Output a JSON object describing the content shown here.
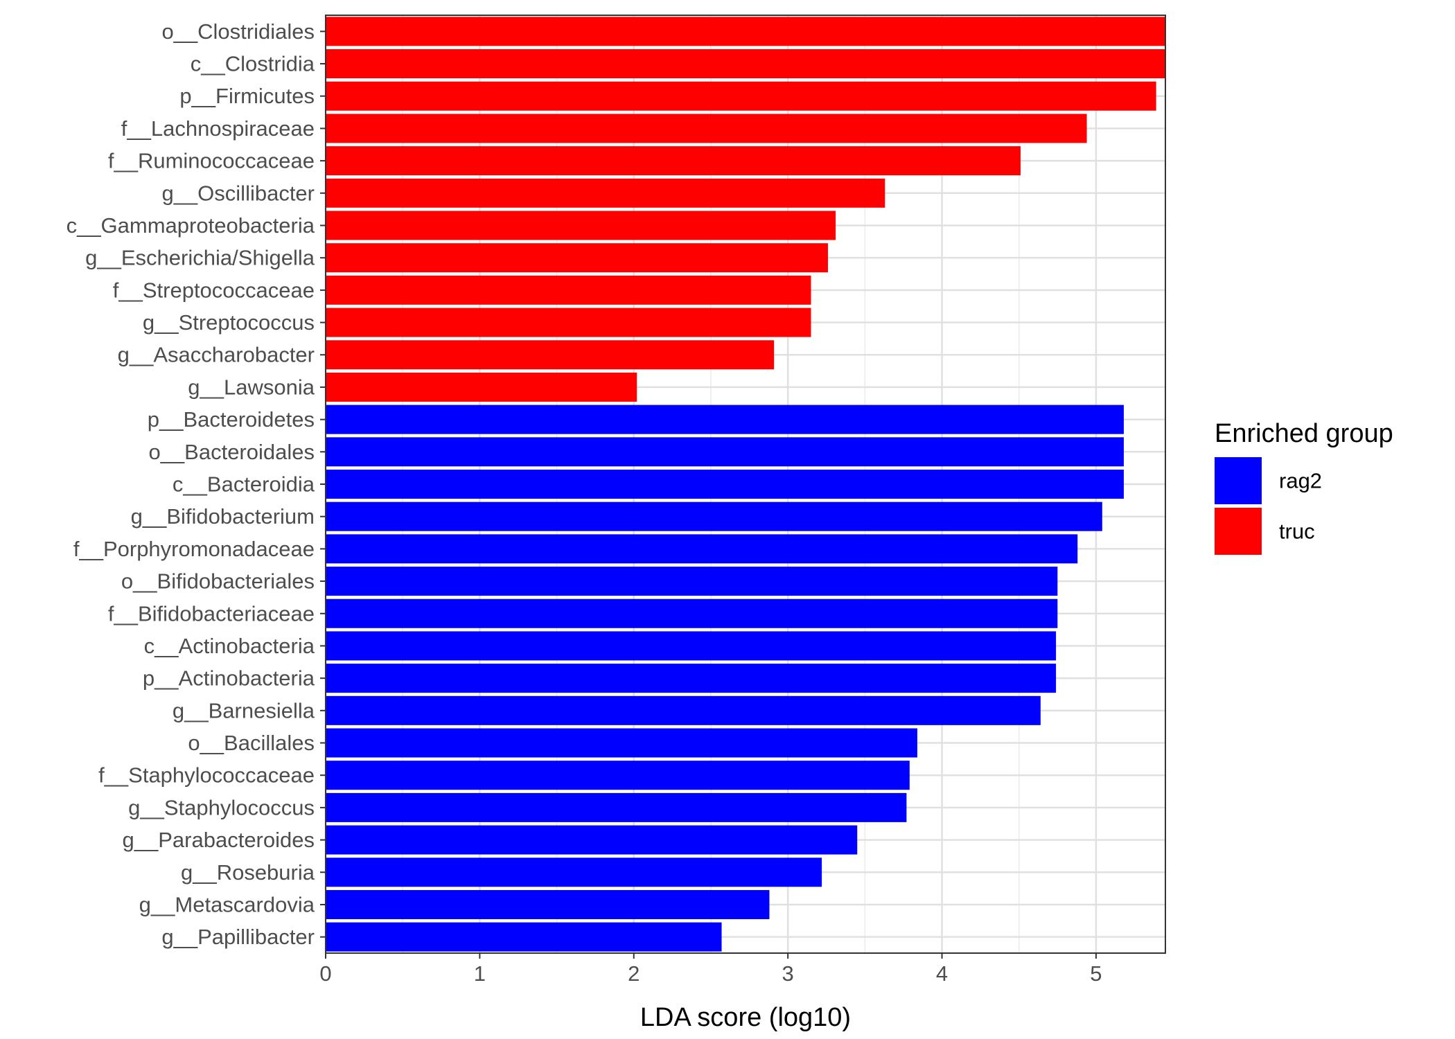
{
  "chart_data": {
    "type": "bar",
    "orientation": "horizontal",
    "title": "",
    "xlabel": "LDA score (log10)",
    "ylabel": "",
    "xlim": [
      0,
      5.45
    ],
    "xticks": [
      "0",
      "1",
      "2",
      "3",
      "4",
      "5"
    ],
    "grid": true,
    "legend": {
      "title": "Enriched group",
      "position": "right",
      "entries": [
        {
          "name": "rag2",
          "color": "#0000FF"
        },
        {
          "name": "truc",
          "color": "#FF0000"
        }
      ]
    },
    "categories": [
      "o__Clostridiales",
      "c__Clostridia",
      "p__Firmicutes",
      "f__Lachnospiraceae",
      "f__Ruminococcaceae",
      "g__Oscillibacter",
      "c__Gammaproteobacteria",
      "g__Escherichia/Shigella",
      "f__Streptococcaceae",
      "g__Streptococcus",
      "g__Asaccharobacter",
      "g__Lawsonia",
      "p__Bacteroidetes",
      "o__Bacteroidales",
      "c__Bacteroidia",
      "g__Bifidobacterium",
      "f__Porphyromonadaceae",
      "o__Bifidobacteriales",
      "f__Bifidobacteriaceae",
      "c__Actinobacteria",
      "p__Actinobacteria",
      "g__Barnesiella",
      "o__Bacillales",
      "f__Staphylococcaceae",
      "g__Staphylococcus",
      "g__Parabacteroides",
      "g__Roseburia",
      "g__Metascardovia",
      "g__Papillibacter"
    ],
    "values": [
      5.45,
      5.45,
      5.39,
      4.94,
      4.51,
      3.63,
      3.31,
      3.26,
      3.15,
      3.15,
      2.91,
      2.02,
      5.18,
      5.18,
      5.18,
      5.04,
      4.88,
      4.75,
      4.75,
      4.74,
      4.74,
      4.64,
      3.84,
      3.79,
      3.77,
      3.45,
      3.22,
      2.88,
      2.57
    ],
    "groups": [
      "truc",
      "truc",
      "truc",
      "truc",
      "truc",
      "truc",
      "truc",
      "truc",
      "truc",
      "truc",
      "truc",
      "truc",
      "rag2",
      "rag2",
      "rag2",
      "rag2",
      "rag2",
      "rag2",
      "rag2",
      "rag2",
      "rag2",
      "rag2",
      "rag2",
      "rag2",
      "rag2",
      "rag2",
      "rag2",
      "rag2",
      "rag2"
    ]
  }
}
